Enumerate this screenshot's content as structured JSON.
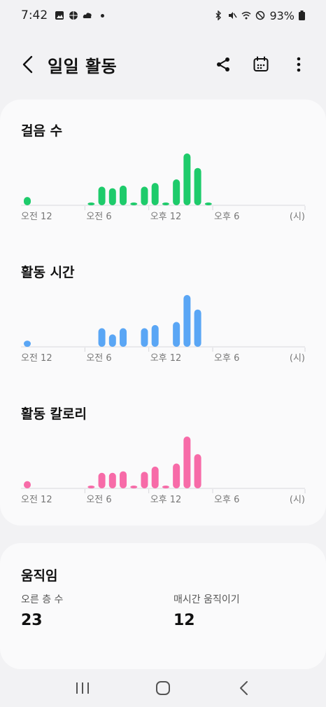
{
  "status_bar": {
    "time": "7:42",
    "battery": "93%",
    "left_icons": [
      "gallery-icon",
      "basketball-icon",
      "cloud-icon"
    ],
    "right_icons": [
      "bluetooth-icon",
      "mute-icon",
      "wifi-icon",
      "do-not-disturb-icon",
      "battery-icon"
    ]
  },
  "header": {
    "title": "일일 활동",
    "icons": [
      "back-icon",
      "share-icon",
      "calendar-icon",
      "more-icon"
    ]
  },
  "charts": {
    "steps": {
      "title": "걸음 수"
    },
    "active_time": {
      "title": "활동 시간"
    },
    "calories": {
      "title": "활동 칼로리"
    },
    "x_labels": [
      "오전 12",
      "오전 6",
      "오후 12",
      "오후 6"
    ],
    "unit": "(시)"
  },
  "chart_data": [
    {
      "type": "bar",
      "title": "걸음 수",
      "color": "#1ecb6b",
      "x_labels": [
        "오전 12",
        "오전 6",
        "오후 12",
        "오후 6"
      ],
      "unit_label": "(시)",
      "hours": [
        0,
        1,
        2,
        3,
        4,
        5,
        6,
        7,
        8,
        9,
        10,
        11,
        12,
        13,
        14,
        15,
        16,
        17,
        18,
        19,
        20,
        21,
        22,
        23
      ],
      "values": [
        0.16,
        0,
        0,
        0,
        0,
        0,
        0.05,
        0.36,
        0.33,
        0.38,
        0.05,
        0.36,
        0.43,
        0.05,
        0.5,
        1.0,
        0.72,
        0.05,
        0,
        0,
        0,
        0,
        0,
        0
      ]
    },
    {
      "type": "bar",
      "title": "활동 시간",
      "color": "#5aa6f5",
      "x_labels": [
        "오전 12",
        "오전 6",
        "오후 12",
        "오후 6"
      ],
      "unit_label": "(시)",
      "hours": [
        0,
        1,
        2,
        3,
        4,
        5,
        6,
        7,
        8,
        9,
        10,
        11,
        12,
        13,
        14,
        15,
        16,
        17,
        18,
        19,
        20,
        21,
        22,
        23
      ],
      "values": [
        0.12,
        0,
        0,
        0,
        0,
        0,
        0,
        0.36,
        0.24,
        0.36,
        0,
        0.36,
        0.42,
        0,
        0.48,
        1.0,
        0.72,
        0,
        0,
        0,
        0,
        0,
        0,
        0
      ]
    },
    {
      "type": "bar",
      "title": "활동 칼로리",
      "color": "#f76ba8",
      "x_labels": [
        "오전 12",
        "오전 6",
        "오후 12",
        "오후 6"
      ],
      "unit_label": "(시)",
      "hours": [
        0,
        1,
        2,
        3,
        4,
        5,
        6,
        7,
        8,
        9,
        10,
        11,
        12,
        13,
        14,
        15,
        16,
        17,
        18,
        19,
        20,
        21,
        22,
        23
      ],
      "values": [
        0.14,
        0,
        0,
        0,
        0,
        0,
        0.05,
        0.3,
        0.3,
        0.33,
        0.05,
        0.32,
        0.42,
        0.05,
        0.48,
        1.0,
        0.66,
        0,
        0,
        0,
        0,
        0,
        0,
        0
      ]
    }
  ],
  "movement": {
    "title": "움직임",
    "floors_label": "오른 층 수",
    "floors_value": "23",
    "hourly_label": "매시간 움직이기",
    "hourly_value": "12"
  },
  "nav": {
    "icons": [
      "recent-apps-icon",
      "home-icon",
      "back-nav-icon"
    ]
  }
}
